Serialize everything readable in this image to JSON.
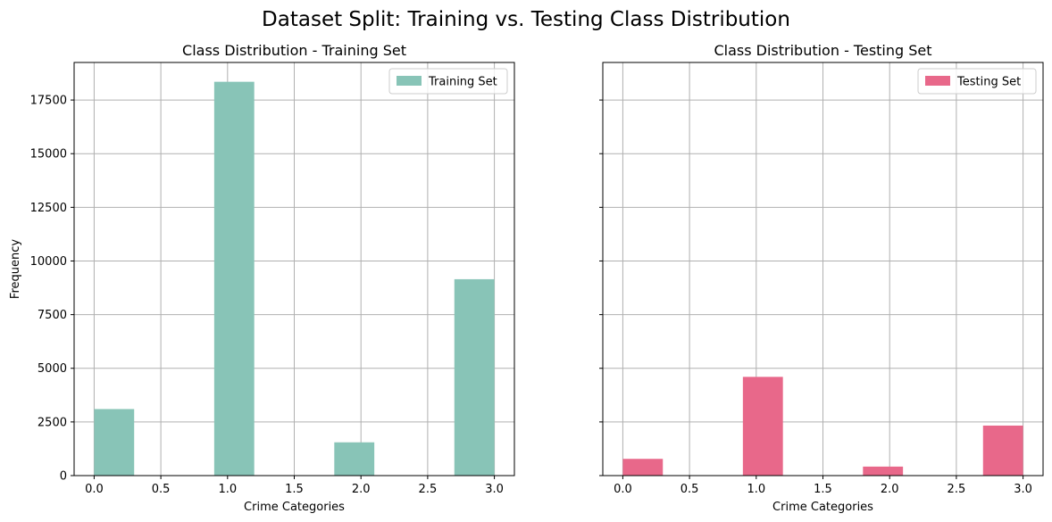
{
  "suptitle": "Dataset Split: Training vs. Testing Class Distribution",
  "chart_data": [
    {
      "type": "bar",
      "title": "Class Distribution - Training Set",
      "xlabel": "Crime Categories",
      "ylabel": "Frequency",
      "xlim": [
        -0.15,
        3.15
      ],
      "ylim": [
        0,
        19250
      ],
      "xticks": [
        0.0,
        0.5,
        1.0,
        1.5,
        2.0,
        2.5,
        3.0
      ],
      "xtick_labels": [
        "0.0",
        "0.5",
        "1.0",
        "1.5",
        "2.0",
        "2.5",
        "3.0"
      ],
      "yticks": [
        0,
        2500,
        5000,
        7500,
        10000,
        12500,
        15000,
        17500
      ],
      "ytick_labels": [
        "0",
        "2500",
        "5000",
        "7500",
        "10000",
        "12500",
        "15000",
        "17500"
      ],
      "bin_width": 0.3,
      "bins": [
        0.0,
        0.9,
        1.8,
        2.7
      ],
      "values": [
        3100,
        18350,
        1550,
        9150
      ],
      "grid": true,
      "legend": {
        "label": "Training Set",
        "position": "upper right"
      },
      "color": "#88c4b7"
    },
    {
      "type": "bar",
      "title": "Class Distribution - Testing Set",
      "xlabel": "Crime Categories",
      "ylabel": "",
      "xlim": [
        -0.15,
        3.15
      ],
      "ylim": [
        0,
        19250
      ],
      "xticks": [
        0.0,
        0.5,
        1.0,
        1.5,
        2.0,
        2.5,
        3.0
      ],
      "xtick_labels": [
        "0.0",
        "0.5",
        "1.0",
        "1.5",
        "2.0",
        "2.5",
        "3.0"
      ],
      "yticks": [
        0,
        2500,
        5000,
        7500,
        10000,
        12500,
        15000,
        17500
      ],
      "ytick_labels": [],
      "bin_width": 0.3,
      "bins": [
        0.0,
        0.9,
        1.8,
        2.7
      ],
      "values": [
        780,
        4600,
        420,
        2330
      ],
      "grid": true,
      "legend": {
        "label": "Testing Set",
        "position": "upper right"
      },
      "color": "#e8688a"
    }
  ]
}
